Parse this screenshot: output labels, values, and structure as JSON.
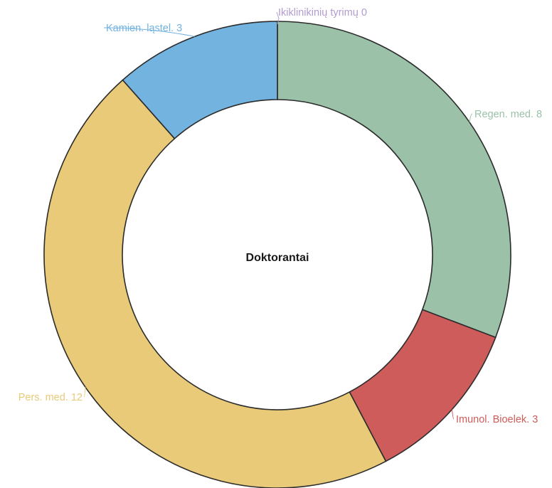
{
  "chart_data": {
    "type": "pie",
    "donut": true,
    "center_label": "Doktorantai",
    "legend": "none",
    "slices": [
      {
        "label": "Ikiklinikinių tyrimų",
        "value": 0,
        "display": "Ikiklinikinių tyrimų 0",
        "color": "#b19cd0"
      },
      {
        "label": "Regen. med.",
        "value": 8,
        "display": "Regen. med. 8",
        "color": "#9bc2a9"
      },
      {
        "label": "Imunol. Bioelek.",
        "value": 3,
        "display": "Imunol. Bioelek. 3",
        "color": "#cd5c5a"
      },
      {
        "label": "Pers. med.",
        "value": 12,
        "display": "Pers. med. 12",
        "color": "#e8ca78"
      },
      {
        "label": "Kamien. ląstel.",
        "value": 3,
        "display": "Kamien. ląstel. 3",
        "color": "#72b3e0"
      }
    ]
  }
}
